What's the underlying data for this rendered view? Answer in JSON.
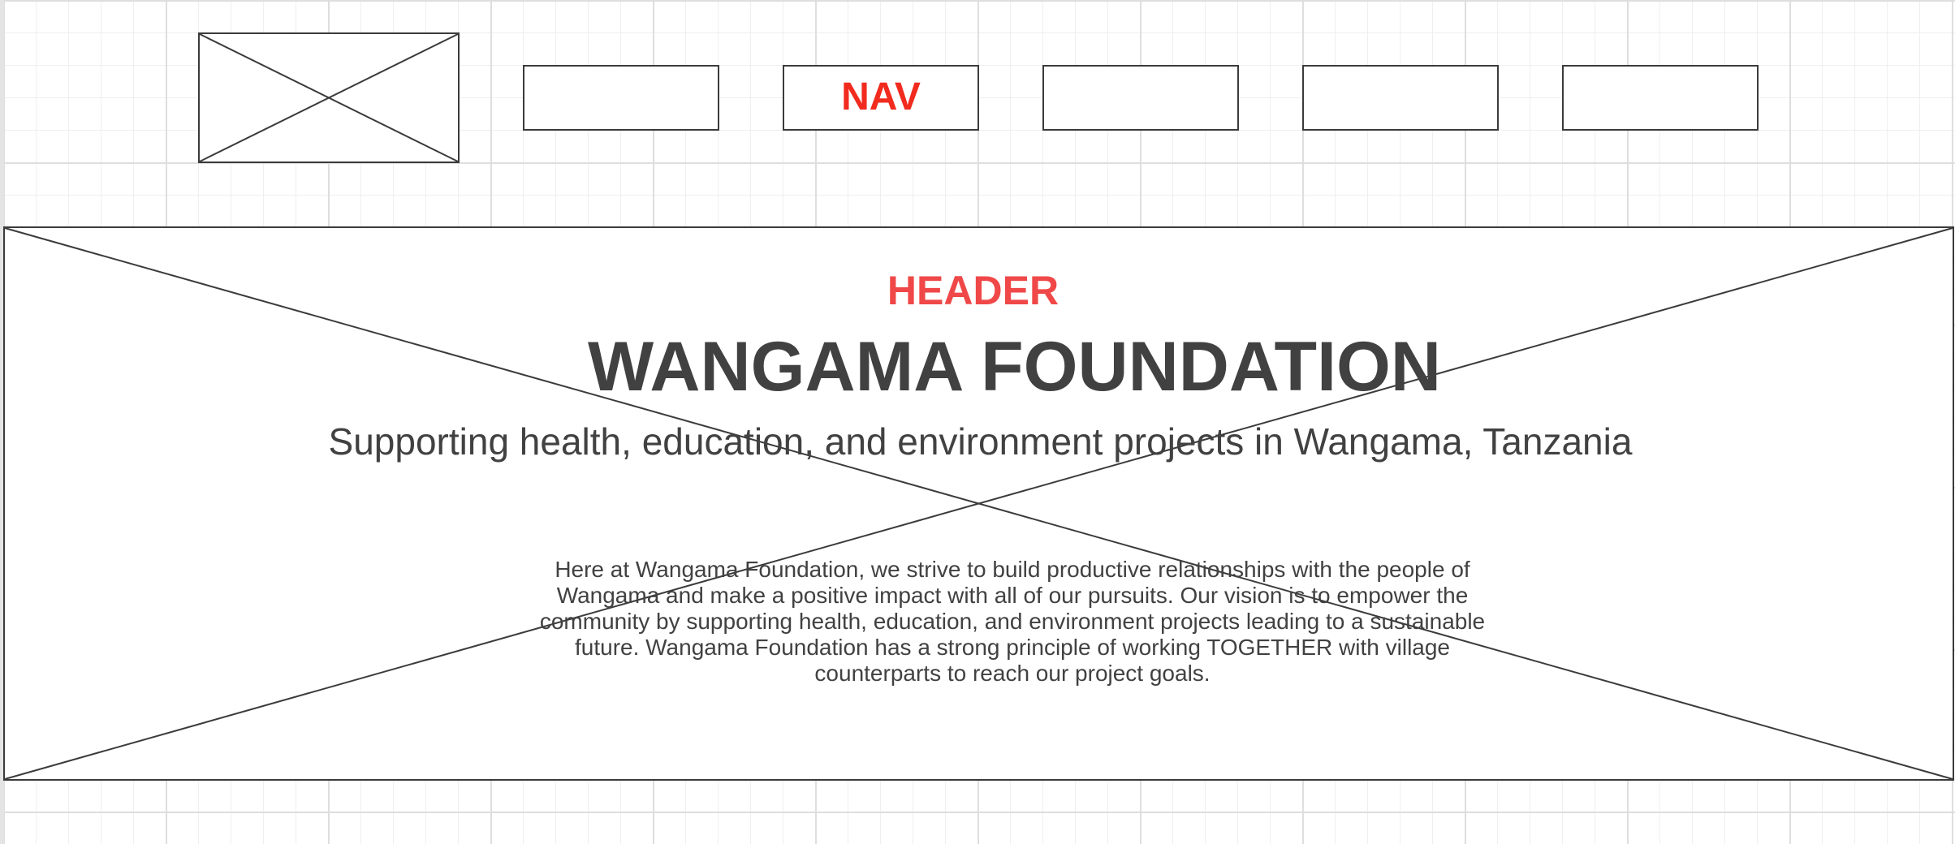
{
  "logo_placeholder": {
    "icon": "image-placeholder-icon"
  },
  "nav": {
    "items": [
      {
        "label": ""
      },
      {
        "label": "NAV"
      },
      {
        "label": ""
      },
      {
        "label": ""
      },
      {
        "label": ""
      }
    ]
  },
  "hero": {
    "image_icon": "image-placeholder-icon",
    "header_label": "HEADER",
    "title": "WANGAMA FOUNDATION",
    "tagline": "Supporting health, education, and environment projects in Wangama, Tanzania",
    "intro": "Here at Wangama Foundation, we strive to build productive relationships with the people of Wangama and make a positive impact with all of our pursuits. Our vision is to empower the community by supporting health, education, and environment projects leading to a sustainable future. Wangama Foundation has a strong principle of working TOGETHER with village counterparts to reach our project goals."
  },
  "colors": {
    "annotation_red": "#f12b1e",
    "header_red": "#f04848",
    "outline": "#3b3b3b",
    "text": "#414141"
  }
}
